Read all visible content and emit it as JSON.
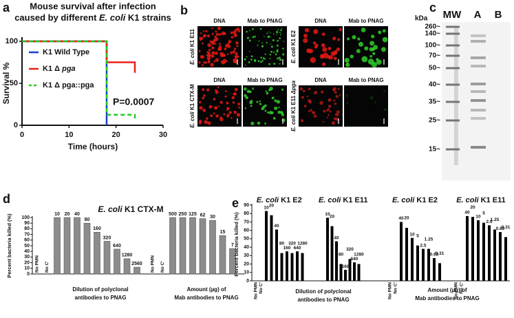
{
  "panel_letters": [
    "a",
    "b",
    "c",
    "d",
    "e"
  ],
  "chart_data": [
    {
      "type": "line",
      "title": [
        "Mouse survival after infection",
        [
          "caused by different ",
          {
            "text": "E. coli",
            "italic": true
          },
          " K1 strains"
        ]
      ],
      "xlabel": "Time  (hours)",
      "ylabel": "Survival %",
      "xlim": [
        0,
        30
      ],
      "ylim": [
        0,
        100
      ],
      "xticks": [
        0,
        10,
        20,
        30
      ],
      "yticks": [
        0,
        50,
        100
      ],
      "legend": "upper left",
      "annotation": "P=0.0007",
      "series": [
        {
          "name": "K1 Wild Type",
          "color": "#1a3cc8",
          "x": [
            0,
            18,
            18
          ],
          "values": [
            100,
            100,
            0
          ]
        },
        {
          "name": [
            "K1 Δ ",
            {
              "text": "pga",
              "italic": true
            }
          ],
          "color": "#e8201c",
          "x": [
            0,
            18,
            18,
            24,
            24
          ],
          "values": [
            100,
            100,
            75,
            75,
            62.5
          ]
        },
        {
          "name": "K1 Δ pga::pga",
          "color": "#22cc22",
          "dashed": true,
          "x": [
            0,
            18,
            18,
            24,
            24
          ],
          "values": [
            100,
            100,
            12.5,
            12.5,
            6
          ]
        }
      ]
    },
    {
      "type": "bar",
      "title": [
        {
          "text": "E. coli",
          "italic": true
        },
        " K1 CTX-M"
      ],
      "ylabel": "Percent bacteria killed (%)",
      "ylim": [
        0,
        100
      ],
      "yticks": [
        0,
        10,
        20,
        30,
        40,
        50,
        60,
        70,
        80,
        90,
        100
      ],
      "color": "#8c8c8c",
      "groups": [
        {
          "categories": [
            "No PMN",
            "No C'",
            "10",
            "20",
            "40",
            "80",
            "160",
            "320",
            "640",
            "1280",
            "2560"
          ],
          "values": [
            0,
            0,
            100,
            100,
            100,
            90,
            74,
            58,
            44,
            27,
            12
          ]
        },
        {
          "categories": [
            "No PMN",
            "No C'",
            "500",
            "250",
            "125",
            "62",
            "30",
            "15",
            "7"
          ],
          "values": [
            0,
            0,
            100,
            100,
            100,
            98,
            95,
            68,
            45
          ]
        }
      ],
      "xlabels": [
        [
          "Dilution of polyclonal",
          "antibodies to PNAG"
        ],
        [
          "Amount  (µg) of",
          "Mab antibodies to PNAG"
        ]
      ]
    },
    {
      "type": "bar",
      "ylabel": "Percent bacteria killed (%)",
      "ylim": [
        0,
        90
      ],
      "yticks": [
        0,
        10,
        20,
        30,
        40,
        50,
        60,
        70,
        80,
        90
      ],
      "color": "#000000",
      "groups": [
        {
          "title": [
            {
              "text": "E. coli",
              "italic": true
            },
            " K1 E2"
          ],
          "categories": [
            "No PMN",
            "No C'",
            "10",
            "20",
            "40",
            "80",
            "160",
            "320",
            "640",
            "1280"
          ],
          "values": [
            0,
            0,
            83,
            78,
            61,
            33,
            35,
            33,
            35,
            33
          ]
        },
        {
          "title": [
            {
              "text": "E. coli",
              "italic": true
            },
            " K1 E11"
          ],
          "categories": [
            "10",
            "20",
            "40",
            "80",
            "160",
            "320",
            "640",
            "1280"
          ],
          "values": [
            75,
            65,
            47,
            20,
            13,
            26,
            22,
            20
          ]
        },
        {
          "title": [
            {
              "text": "E. coli",
              "italic": true
            },
            " K1 E2"
          ],
          "categories": [
            "No PMN",
            "No C'",
            "40",
            "20",
            "10",
            "5",
            "2.5",
            "1.25",
            "0.62",
            "0.31"
          ],
          "values": [
            0,
            0,
            70,
            63,
            51,
            42,
            38,
            38,
            27,
            21
          ]
        },
        {
          "title": [
            {
              "text": "E. coli",
              "italic": true
            },
            " K1 E11"
          ],
          "categories": [
            "No PMN",
            "No C'",
            "40",
            "20",
            "10",
            "5",
            "2.5",
            "1.25",
            "0.62",
            "0.31"
          ],
          "values": [
            0,
            0,
            77,
            76,
            72,
            69,
            66,
            61,
            58,
            52
          ]
        }
      ],
      "xlabels": [
        [
          "Dilution of polyclonal",
          "antibodies to PNAG"
        ],
        [
          "Amount  (µg) of",
          "Mab antibodies to PNAG"
        ]
      ]
    }
  ],
  "micrographs": {
    "panels": [
      {
        "strain": [
          {
            "text": "E. coli",
            "italic": true
          },
          " K1 E11"
        ],
        "channels": [
          "DNA",
          "Mab to PNAG"
        ]
      },
      {
        "strain": [
          {
            "text": "E. coli",
            "italic": true
          },
          " K1 E2"
        ],
        "channels": [
          "DNA",
          "Mab to PNAG"
        ]
      },
      {
        "strain": [
          {
            "text": "E. coli",
            "italic": true
          },
          " K1 CTX-M"
        ],
        "channels": [
          "DNA",
          "Mab to PNAG"
        ]
      },
      {
        "strain": [
          {
            "text": "E. coli",
            "italic": true
          },
          " K1 E11 ",
          {
            "text": "Δpga",
            "italic": true
          }
        ],
        "channels": [
          "DNA",
          "Mab to PNAG"
        ]
      }
    ]
  },
  "gel": {
    "unit": "kDa",
    "lanes": [
      "MW",
      "A",
      "B"
    ],
    "markers": [
      "260~",
      "140~",
      "100~",
      "70~",
      "50~",
      "40~",
      "35~",
      "25~",
      "15~"
    ]
  }
}
